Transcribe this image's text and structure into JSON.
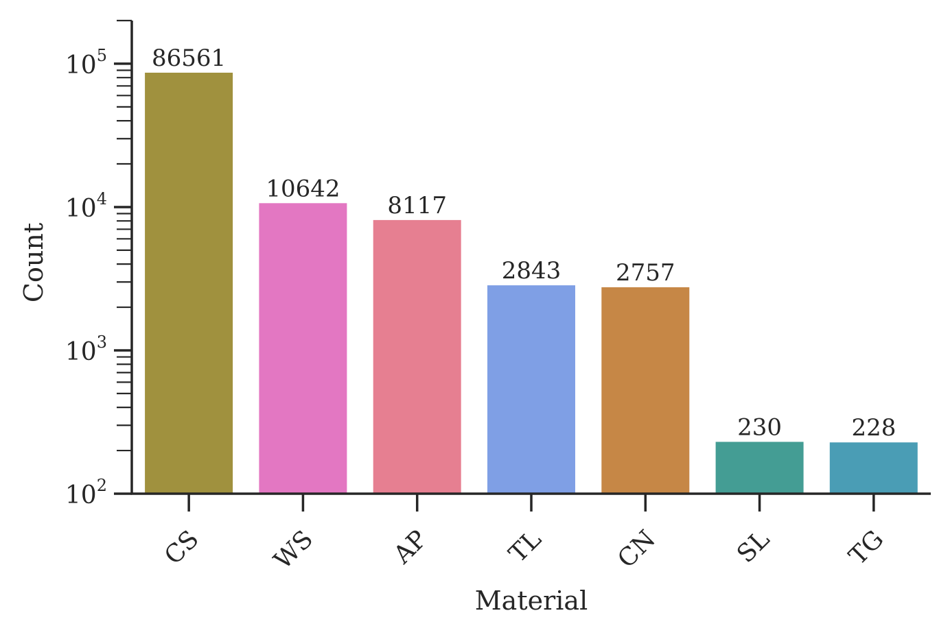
{
  "chart_data": {
    "type": "bar",
    "xlabel": "Material",
    "ylabel": "Count",
    "yscale": "log",
    "ylim": [
      100,
      200000
    ],
    "y_ticks": [
      {
        "value": 100,
        "base": "10",
        "exp": "2"
      },
      {
        "value": 1000,
        "base": "10",
        "exp": "3"
      },
      {
        "value": 10000,
        "base": "10",
        "exp": "4"
      },
      {
        "value": 100000,
        "base": "10",
        "exp": "5"
      }
    ],
    "categories": [
      "CS",
      "WS",
      "AP",
      "TL",
      "CN",
      "SL",
      "TG"
    ],
    "values": [
      86561,
      10642,
      8117,
      2843,
      2757,
      230,
      228
    ],
    "value_labels": [
      "86561",
      "10642",
      "8117",
      "2843",
      "2757",
      "230",
      "228"
    ],
    "colors": [
      "#a0913e",
      "#e377c2",
      "#e67f91",
      "#7f9fe5",
      "#c68746",
      "#449d94",
      "#4a9db5"
    ],
    "grid": false,
    "legend": "none"
  }
}
